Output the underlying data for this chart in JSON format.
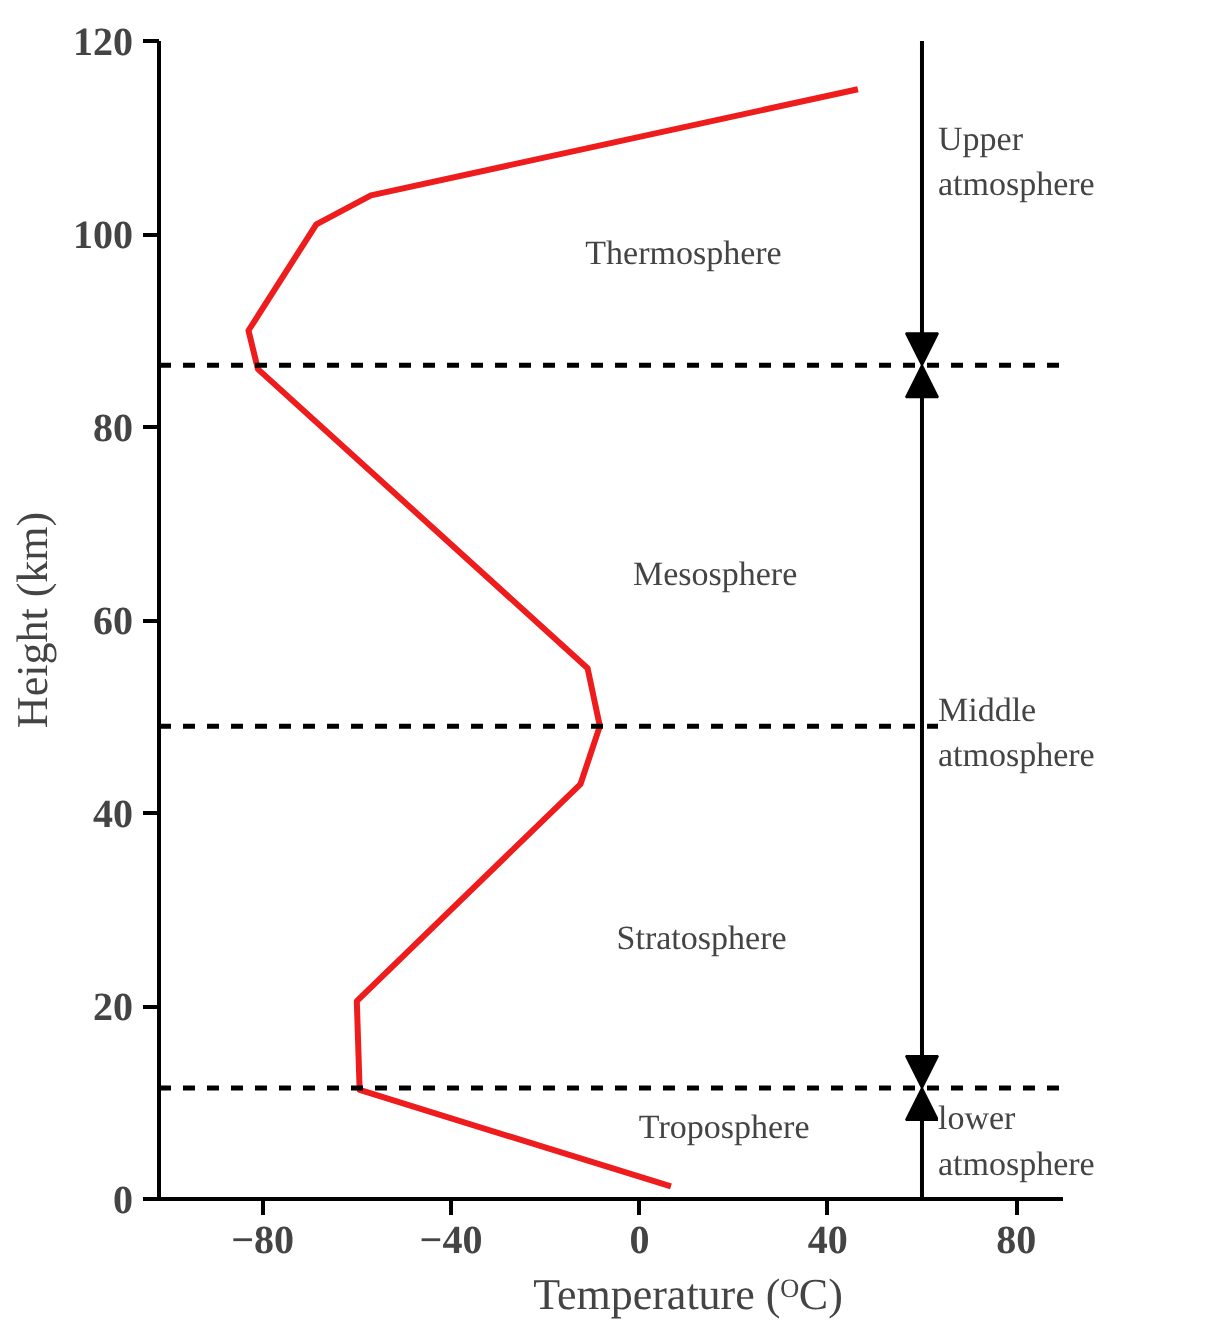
{
  "chart_data": {
    "type": "line",
    "xlabel": "Temperature (ᴼC)",
    "ylabel": "Height (km)",
    "x": [
      6.7,
      -59.4,
      -60,
      -12.5,
      -8.4,
      -11,
      -81,
      -83,
      -68.6,
      -57,
      46.4
    ],
    "values": [
      1.3,
      11.3,
      20.5,
      43,
      49,
      55,
      86,
      90,
      101,
      104,
      115
    ],
    "color": "#ee1c1c",
    "xlim": [
      -102,
      90
    ],
    "ylim": [
      0,
      120
    ],
    "xticks": [
      -80,
      -40,
      0,
      40,
      80
    ],
    "yticks": [
      0,
      20,
      40,
      60,
      80,
      100,
      120
    ],
    "grid": false,
    "marker": "none",
    "line_style": "solid",
    "ref_lines": [
      {
        "axis": "y",
        "value": 86.4,
        "color": "#000000",
        "line_style": "dashed"
      },
      {
        "axis": "y",
        "value": 49,
        "color": "#000000",
        "line_style": "dashed"
      },
      {
        "axis": "y",
        "value": 11.5,
        "color": "#000000",
        "line_style": "dashed"
      }
    ],
    "annotations": [
      "Thermosphere",
      "Mesosphere",
      "Stratosphere",
      "Troposphere",
      "Upper\natmosphere",
      "Middle\natmosphere",
      {
        "text": "lower\natmosphere",
        "x": 60,
        "y": 11.5
      }
    ]
  }
}
